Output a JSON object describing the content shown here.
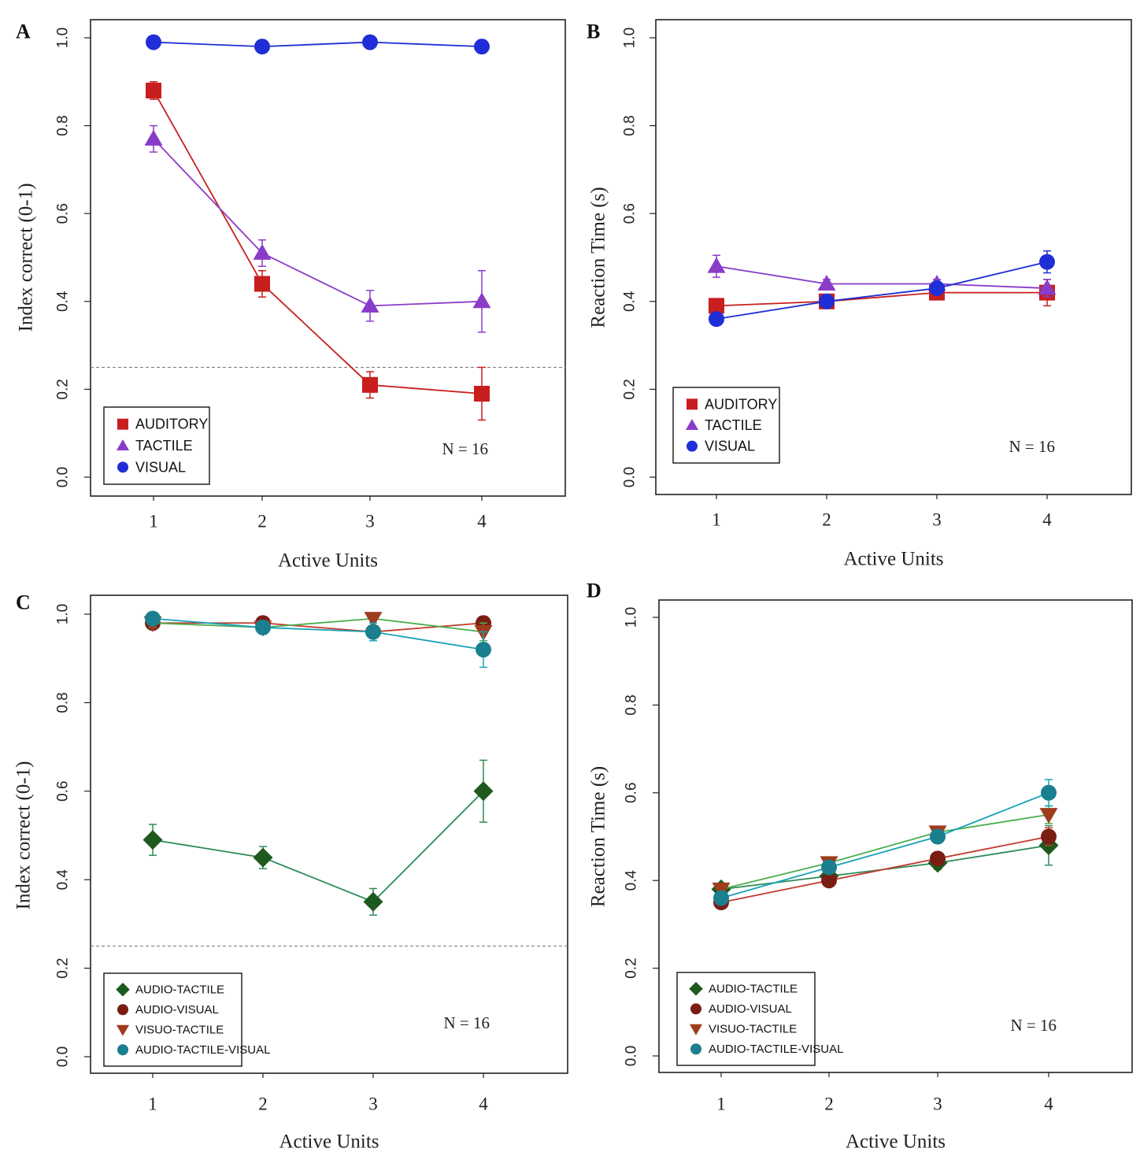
{
  "chart_data": [
    {
      "panel": "A",
      "type": "line",
      "xlabel": "Active Units",
      "ylabel": "Index correct (0-1)",
      "x": [
        1,
        2,
        3,
        4
      ],
      "xticks": [
        "1",
        "2",
        "3",
        "4"
      ],
      "yticks": [
        "0.0",
        "0.2",
        "0.4",
        "0.6",
        "0.8",
        "1.0"
      ],
      "ylim": [
        0,
        1
      ],
      "chance_line": 0.25,
      "annotation": "N = 16",
      "legend_position": "bottom-left",
      "series": [
        {
          "name": "AUDITORY",
          "marker": "square",
          "color": "#c81e1e",
          "values": [
            0.88,
            0.44,
            0.21,
            0.19
          ],
          "err": [
            0.02,
            0.03,
            0.03,
            0.06
          ]
        },
        {
          "name": "TACTILE",
          "marker": "triangle",
          "color": "#8a3cc8",
          "values": [
            0.77,
            0.51,
            0.39,
            0.4
          ],
          "err": [
            0.03,
            0.03,
            0.035,
            0.07
          ]
        },
        {
          "name": "VISUAL",
          "marker": "circle",
          "color": "#1f2ed6",
          "values": [
            0.99,
            0.98,
            0.99,
            0.98
          ],
          "err": [
            0.01,
            0.01,
            0.01,
            0.015
          ]
        }
      ]
    },
    {
      "panel": "B",
      "type": "line",
      "xlabel": "Active Units",
      "ylabel": "Reaction Time (s)",
      "x": [
        1,
        2,
        3,
        4
      ],
      "xticks": [
        "1",
        "2",
        "3",
        "4"
      ],
      "yticks": [
        "0.0",
        "0.2",
        "0.4",
        "0.6",
        "0.8",
        "1.0"
      ],
      "ylim": [
        0,
        1
      ],
      "annotation": "N = 16",
      "legend_position": "bottom-left",
      "series": [
        {
          "name": "AUDITORY",
          "marker": "square",
          "color": "#c81e1e",
          "values": [
            0.39,
            0.4,
            0.42,
            0.42
          ],
          "err": [
            0.01,
            0.01,
            0.01,
            0.03
          ]
        },
        {
          "name": "TACTILE",
          "marker": "triangle",
          "color": "#8a3cc8",
          "values": [
            0.48,
            0.44,
            0.44,
            0.43
          ],
          "err": [
            0.025,
            0.01,
            0.01,
            0.02
          ]
        },
        {
          "name": "VISUAL",
          "marker": "circle",
          "color": "#1f2ed6",
          "values": [
            0.36,
            0.4,
            0.43,
            0.49
          ],
          "err": [
            0.01,
            0.01,
            0.01,
            0.025
          ]
        }
      ]
    },
    {
      "panel": "C",
      "type": "line",
      "xlabel": "Active Units",
      "ylabel": "Index correct (0-1)",
      "x": [
        1,
        2,
        3,
        4
      ],
      "xticks": [
        "1",
        "2",
        "3",
        "4"
      ],
      "yticks": [
        "0.0",
        "0.2",
        "0.4",
        "0.6",
        "0.8",
        "1.0"
      ],
      "ylim": [
        0,
        1
      ],
      "chance_line": 0.25,
      "annotation": "N = 16",
      "legend_position": "bottom-left",
      "series": [
        {
          "name": "AUDIO-TACTILE",
          "marker": "diamond",
          "color": "#1e5a1e",
          "line": "#2e8b57",
          "values": [
            0.49,
            0.45,
            0.35,
            0.6
          ],
          "err": [
            0.035,
            0.025,
            0.03,
            0.07
          ]
        },
        {
          "name": "AUDIO-VISUAL",
          "marker": "circle",
          "color": "#7a1e14",
          "line": "#c0392b",
          "values": [
            0.98,
            0.98,
            0.96,
            0.98
          ],
          "err": [
            0.01,
            0.01,
            0.01,
            0.015
          ]
        },
        {
          "name": "VISUO-TACTILE",
          "marker": "triangle-down",
          "color": "#a03c1e",
          "line": "#4caf50",
          "values": [
            0.98,
            0.97,
            0.99,
            0.96
          ],
          "err": [
            0.01,
            0.015,
            0.01,
            0.02
          ]
        },
        {
          "name": "AUDIO-TACTILE-VISUAL",
          "marker": "circle",
          "color": "#1a7f8e",
          "line": "#17a2b8",
          "values": [
            0.99,
            0.97,
            0.96,
            0.92
          ],
          "err": [
            0.01,
            0.015,
            0.02,
            0.04
          ]
        }
      ]
    },
    {
      "panel": "D",
      "type": "line",
      "xlabel": "Active Units",
      "ylabel": "Reaction Time (s)",
      "x": [
        1,
        2,
        3,
        4
      ],
      "xticks": [
        "1",
        "2",
        "3",
        "4"
      ],
      "yticks": [
        "0.0",
        "0.2",
        "0.4",
        "0.6",
        "0.8",
        "1.0"
      ],
      "ylim": [
        0,
        1
      ],
      "annotation": "N = 16",
      "legend_position": "bottom-left",
      "series": [
        {
          "name": "AUDIO-TACTILE",
          "marker": "diamond",
          "color": "#1e5a1e",
          "line": "#2e8b57",
          "values": [
            0.38,
            0.41,
            0.44,
            0.48
          ],
          "err": [
            0.01,
            0.01,
            0.015,
            0.045
          ]
        },
        {
          "name": "AUDIO-VISUAL",
          "marker": "circle",
          "color": "#7a1e14",
          "line": "#c0392b",
          "values": [
            0.35,
            0.4,
            0.45,
            0.5
          ],
          "err": [
            0.01,
            0.01,
            0.01,
            0.02
          ]
        },
        {
          "name": "VISUO-TACTILE",
          "marker": "triangle-down",
          "color": "#a03c1e",
          "line": "#4caf50",
          "values": [
            0.38,
            0.44,
            0.51,
            0.55
          ],
          "err": [
            0.01,
            0.01,
            0.01,
            0.02
          ]
        },
        {
          "name": "AUDIO-TACTILE-VISUAL",
          "marker": "circle",
          "color": "#1a7f8e",
          "line": "#17a2b8",
          "values": [
            0.36,
            0.43,
            0.5,
            0.6
          ],
          "err": [
            0.01,
            0.01,
            0.01,
            0.03
          ]
        }
      ]
    }
  ]
}
